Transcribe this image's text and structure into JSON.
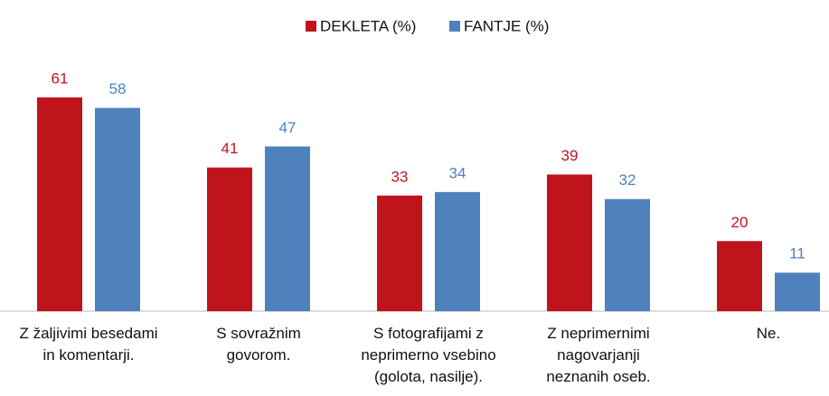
{
  "chart_data": {
    "type": "bar",
    "categories": [
      "Z žaljivimi besedami\nin komentarji.",
      "S sovražnim\ngovorom.",
      "S fotografijami z\nneprimerno vsebino\n(golota, nasilje).",
      "Z neprimernimi\nnagovarjanji\nneznanih oseb.",
      "Ne."
    ],
    "series": [
      {
        "name": "DEKLETA (%)",
        "color": "#c0141c",
        "values": [
          61,
          41,
          33,
          39,
          20
        ]
      },
      {
        "name": "FANTJE (%)",
        "color": "#4f81bd",
        "values": [
          58,
          47,
          34,
          32,
          11
        ]
      }
    ],
    "ylim": [
      0,
      70
    ],
    "legend": "top"
  }
}
